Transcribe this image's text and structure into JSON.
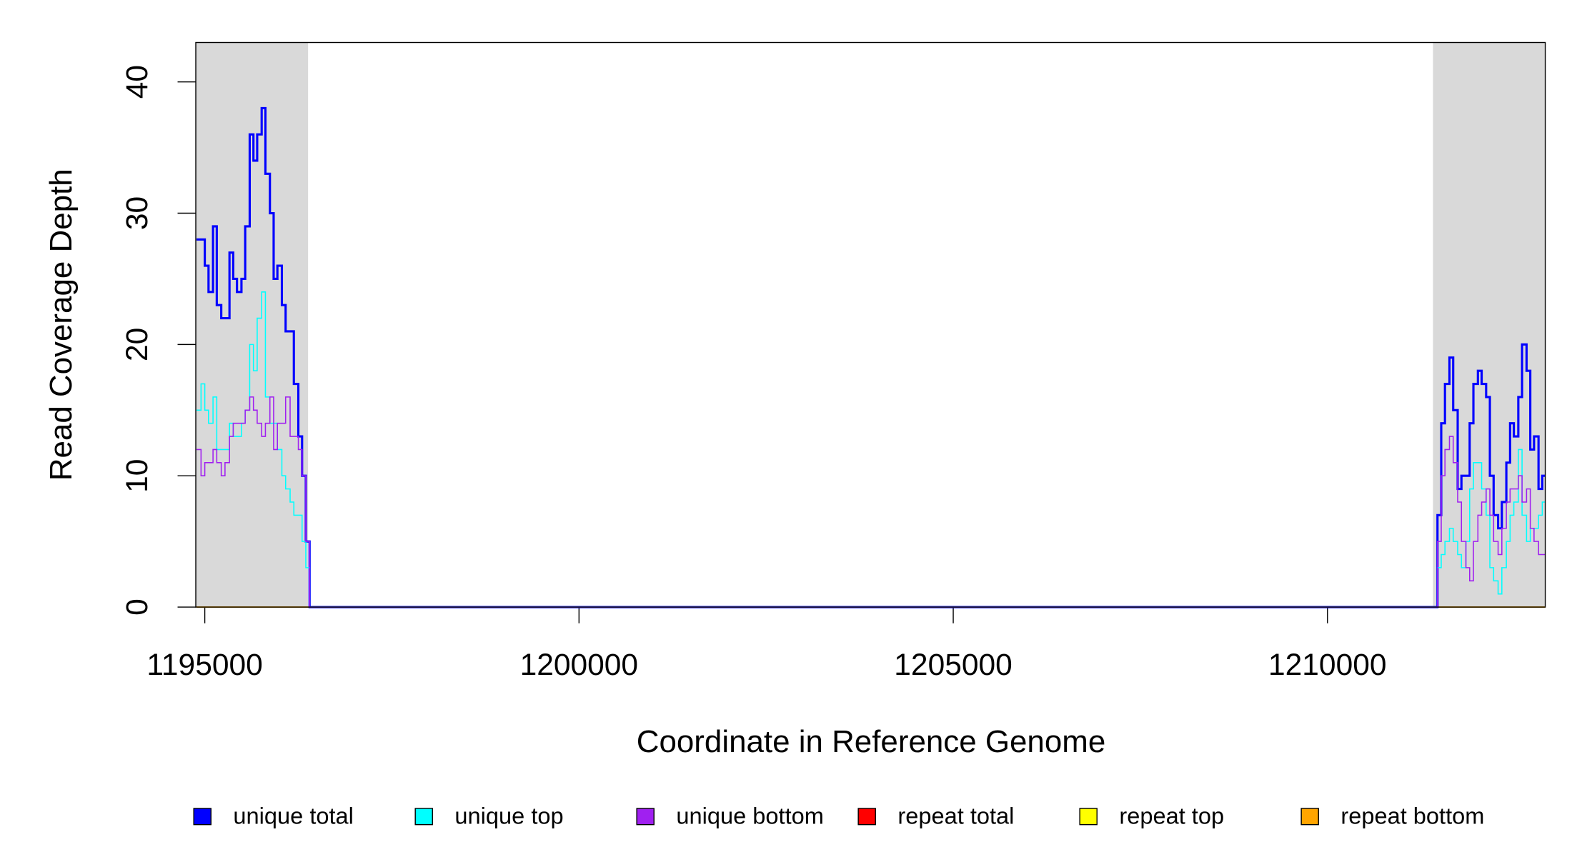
{
  "chart_data": {
    "type": "step-line",
    "xlabel": "Coordinate in Reference Genome",
    "ylabel": "Read Coverage Depth",
    "xlim": [
      1194880,
      1212910
    ],
    "ylim": [
      0,
      43
    ],
    "xticks": [
      1195000,
      1200000,
      1205000,
      1210000
    ],
    "yticks": [
      0,
      10,
      20,
      30,
      40
    ],
    "highlight_regions": [
      [
        1194880,
        1196380
      ],
      [
        1211410,
        1212910
      ]
    ],
    "highlight_color": "#d9d9d9",
    "legend": "bottom",
    "x": [
      1194890,
      1194950,
      1195000,
      1195050,
      1195110,
      1195160,
      1195220,
      1195270,
      1195330,
      1195380,
      1195430,
      1195490,
      1195540,
      1195600,
      1195650,
      1195700,
      1195760,
      1195810,
      1195870,
      1195920,
      1195970,
      1196030,
      1196080,
      1196140,
      1196190,
      1196250,
      1196300,
      1196350,
      1196400,
      1211400,
      1211470,
      1211520,
      1211570,
      1211630,
      1211680,
      1211740,
      1211790,
      1211850,
      1211900,
      1211950,
      1212010,
      1212060,
      1212120,
      1212170,
      1212220,
      1212280,
      1212330,
      1212390,
      1212440,
      1212490,
      1212550,
      1212600,
      1212660,
      1212710,
      1212760,
      1212820,
      1212870,
      1212910
    ],
    "series": [
      {
        "name": "unique total",
        "color": "#0000ff",
        "values": [
          28,
          28,
          26,
          24,
          29,
          23,
          22,
          22,
          27,
          25,
          24,
          25,
          29,
          36,
          34,
          36,
          38,
          33,
          30,
          25,
          26,
          23,
          21,
          21,
          17,
          13,
          10,
          5,
          0,
          0,
          7,
          14,
          17,
          19,
          15,
          9,
          10,
          10,
          14,
          17,
          18,
          17,
          16,
          10,
          7,
          6,
          8,
          11,
          14,
          13,
          16,
          20,
          18,
          12,
          13,
          9,
          10,
          10
        ]
      },
      {
        "name": "unique top",
        "color": "#00ffff",
        "values": [
          15,
          17,
          15,
          14,
          16,
          12,
          12,
          12,
          14,
          13,
          13,
          14,
          15,
          20,
          18,
          22,
          24,
          16,
          14,
          14,
          12,
          10,
          9,
          8,
          7,
          7,
          5,
          3,
          0,
          0,
          3,
          4,
          5,
          6,
          5,
          4,
          3,
          5,
          9,
          11,
          11,
          9,
          7,
          3,
          2,
          1,
          3,
          5,
          7,
          8,
          12,
          7,
          5,
          6,
          6,
          7,
          8,
          8
        ]
      },
      {
        "name": "unique bottom",
        "color": "#a020f0",
        "values": [
          12,
          10,
          11,
          11,
          12,
          11,
          10,
          11,
          13,
          14,
          14,
          14,
          15,
          16,
          15,
          14,
          13,
          14,
          16,
          12,
          14,
          14,
          16,
          13,
          13,
          12,
          10,
          5,
          0,
          0,
          5,
          10,
          12,
          13,
          11,
          8,
          5,
          3,
          2,
          5,
          7,
          8,
          9,
          7,
          5,
          4,
          6,
          8,
          9,
          9,
          10,
          8,
          9,
          6,
          5,
          4,
          4,
          4
        ]
      },
      {
        "name": "repeat total",
        "color": "#ff0000",
        "values": [
          0,
          0,
          0,
          0,
          0,
          0,
          0,
          0,
          0,
          0,
          0,
          0,
          0,
          0,
          0,
          0,
          0,
          0,
          0,
          0,
          0,
          0,
          0,
          0,
          0,
          0,
          0,
          0,
          0,
          0,
          0,
          0,
          0,
          0,
          0,
          0,
          0,
          0,
          0,
          0,
          0,
          0,
          0,
          0,
          0,
          0,
          0,
          0,
          0,
          0,
          0,
          0,
          0,
          0,
          0,
          0,
          0,
          0
        ]
      },
      {
        "name": "repeat top",
        "color": "#ffff00",
        "values": [
          0,
          0,
          0,
          0,
          0,
          0,
          0,
          0,
          0,
          0,
          0,
          0,
          0,
          0,
          0,
          0,
          0,
          0,
          0,
          0,
          0,
          0,
          0,
          0,
          0,
          0,
          0,
          0,
          0,
          0,
          0,
          0,
          0,
          0,
          0,
          0,
          0,
          0,
          0,
          0,
          0,
          0,
          0,
          0,
          0,
          0,
          0,
          0,
          0,
          0,
          0,
          0,
          0,
          0,
          0,
          0,
          0,
          0
        ]
      },
      {
        "name": "repeat bottom",
        "color": "#ffa500",
        "values": [
          0,
          0,
          0,
          0,
          0,
          0,
          0,
          0,
          0,
          0,
          0,
          0,
          0,
          0,
          0,
          0,
          0,
          0,
          0,
          0,
          0,
          0,
          0,
          0,
          0,
          0,
          0,
          0,
          0,
          0,
          0,
          0,
          0,
          0,
          0,
          0,
          0,
          0,
          0,
          0,
          0,
          0,
          0,
          0,
          0,
          0,
          0,
          0,
          0,
          0,
          0,
          0,
          0,
          0,
          0,
          0,
          0,
          0
        ]
      }
    ]
  }
}
